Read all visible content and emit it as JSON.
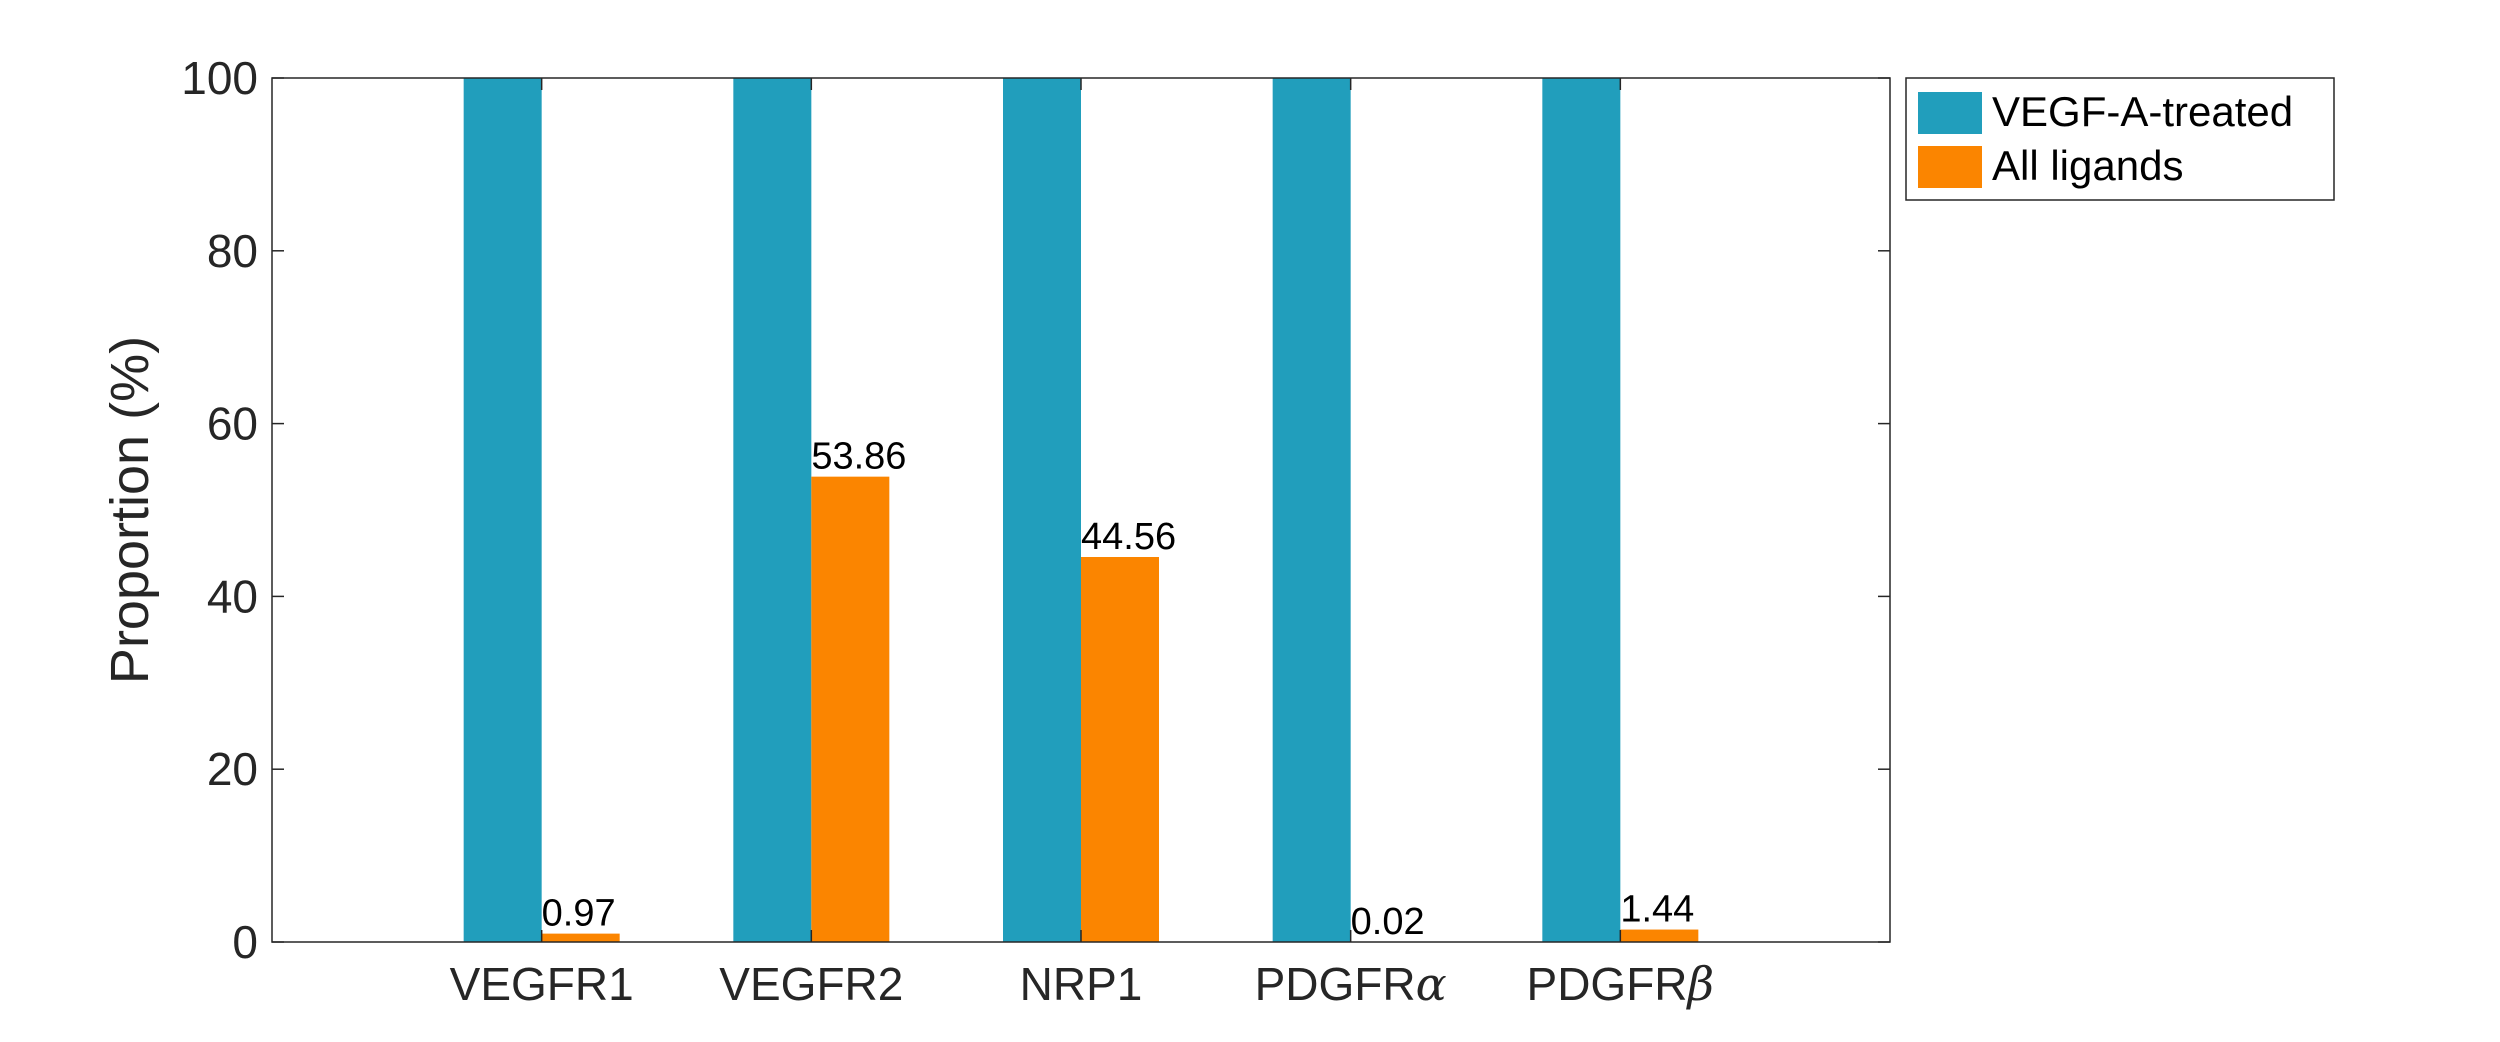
{
  "chart_data": {
    "type": "bar",
    "title": "",
    "xlabel": "",
    "ylabel": "Proportion (%)",
    "ylim": [
      0,
      100
    ],
    "yticks": [
      0,
      20,
      40,
      60,
      80,
      100
    ],
    "categories": [
      {
        "prefix": "VEGFR1",
        "greek": ""
      },
      {
        "prefix": "VEGFR2",
        "greek": ""
      },
      {
        "prefix": "NRP1",
        "greek": ""
      },
      {
        "prefix": "PDGFR",
        "greek": "α"
      },
      {
        "prefix": "PDGFR",
        "greek": "β"
      }
    ],
    "series": [
      {
        "name": "VEGF-A-treated",
        "color": "#219EBC",
        "values": [
          100,
          100,
          100,
          100,
          100
        ],
        "labels": [
          "",
          "",
          "",
          "",
          ""
        ]
      },
      {
        "name": "All ligands",
        "color": "#FB8500",
        "values": [
          0.97,
          53.86,
          44.56,
          0.02,
          1.44
        ],
        "labels": [
          "0.97",
          "53.86",
          "44.56",
          "0.02",
          "1.44"
        ]
      }
    ],
    "grid": false,
    "legend_position": "outside-top-right"
  }
}
